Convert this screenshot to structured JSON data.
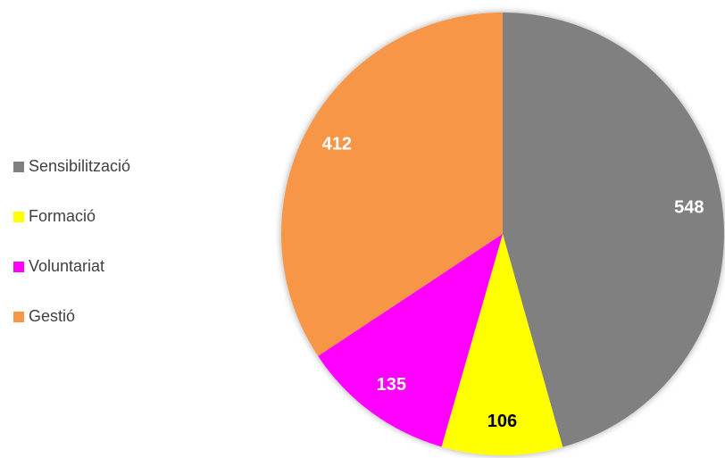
{
  "chart_data": {
    "type": "pie",
    "categories": [
      "Sensibilització",
      "Formació",
      "Voluntariat",
      "Gestió"
    ],
    "values": [
      548,
      106,
      135,
      412
    ],
    "colors": [
      "#808080",
      "#ffff00",
      "#ff00ff",
      "#f79646"
    ],
    "value_label_colors": [
      "#ffffff",
      "#000000",
      "#ffffff",
      "#ffffff"
    ],
    "legend": "left"
  }
}
